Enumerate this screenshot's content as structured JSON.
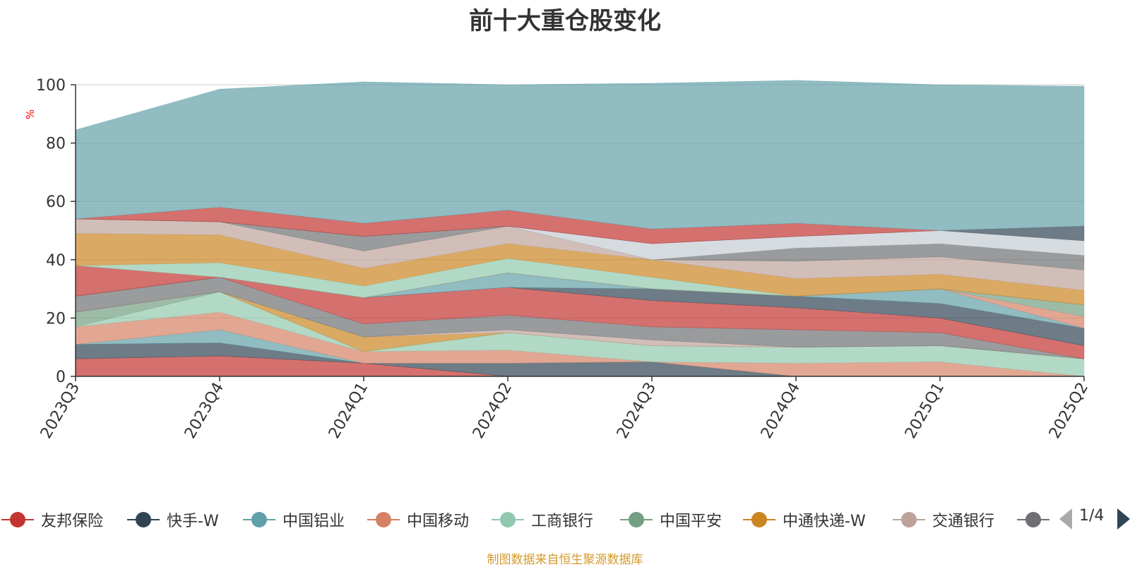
{
  "chart_data": {
    "type": "area",
    "stacked": true,
    "title": "前十大重仓股变化",
    "ylabel": "%",
    "ylim": [
      0,
      100
    ],
    "yticks": [
      0,
      20,
      40,
      60,
      80,
      100
    ],
    "grid": true,
    "legend_position": "bottom",
    "categories": [
      "2023Q3",
      "2023Q4",
      "2024Q1",
      "2024Q2",
      "2024Q3",
      "2024Q4",
      "2025Q1",
      "2025Q2"
    ],
    "series": [
      {
        "name": "友邦保险",
        "color": "#c23531",
        "values": [
          6,
          7,
          4.5,
          0,
          0,
          0,
          0,
          0
        ]
      },
      {
        "name": "快手-W",
        "color": "#2f4554",
        "values": [
          5,
          4.5,
          0,
          4.5,
          5,
          0,
          0,
          0
        ]
      },
      {
        "name": "中国铝业",
        "color": "#61a0a8",
        "values": [
          0,
          4.5,
          0,
          0,
          0,
          0,
          0,
          0
        ]
      },
      {
        "name": "中国移动",
        "color": "#d48265",
        "values": [
          6,
          6,
          4,
          4.5,
          0,
          4.5,
          5,
          0
        ]
      },
      {
        "name": "工商银行",
        "color": "#91c7ae",
        "values": [
          0,
          7,
          0,
          6,
          5.5,
          5.5,
          5.5,
          6
        ]
      },
      {
        "name": "中国平安",
        "color": "#749f83",
        "values": [
          5,
          0,
          0,
          0,
          0,
          0,
          0,
          0
        ]
      },
      {
        "name": "中通快递-W",
        "color": "#ca8622",
        "values": [
          0,
          0,
          5,
          0,
          0,
          0,
          0,
          0
        ]
      },
      {
        "name": "交通银行",
        "color": "#bda29a",
        "values": [
          0,
          0,
          0,
          1,
          2,
          0,
          0,
          0
        ]
      },
      {
        "name": "",
        "color": "#6e7074",
        "values": [
          5.5,
          5,
          4.5,
          5,
          4.5,
          6,
          4.5,
          0
        ]
      },
      {
        "name": "",
        "color": "#c23531",
        "values": [
          0,
          0,
          9,
          9.5,
          9,
          7.5,
          5,
          4.5
        ]
      },
      {
        "name": "",
        "color": "#2f4554",
        "values": [
          0,
          0,
          0,
          0,
          4,
          4,
          5,
          6
        ]
      },
      {
        "name": "",
        "color": "#61a0a8",
        "values": [
          0,
          0,
          0,
          5,
          0,
          0,
          5,
          0
        ]
      },
      {
        "name": "",
        "color": "#d48265",
        "values": [
          0,
          0,
          0,
          0,
          0,
          0,
          0,
          4
        ]
      },
      {
        "name": "",
        "color": "#749f83",
        "values": [
          0,
          0,
          0,
          0,
          0,
          0,
          0,
          4
        ]
      },
      {
        "name": "",
        "color": "#c23531",
        "values": [
          10.5,
          0,
          0,
          0,
          0,
          0,
          0,
          0
        ]
      },
      {
        "name": "",
        "color": "#91c7ae",
        "values": [
          0,
          5,
          4,
          5,
          4,
          0,
          0,
          0
        ]
      },
      {
        "name": "",
        "color": "#ca8622",
        "values": [
          11,
          9.5,
          6,
          5,
          6,
          6,
          5,
          5
        ]
      },
      {
        "name": "",
        "color": "#bda29a",
        "values": [
          5,
          4.5,
          6,
          6,
          0,
          6,
          6,
          7
        ]
      },
      {
        "name": "",
        "color": "#6e7074",
        "values": [
          0,
          0,
          5,
          0,
          0,
          4.5,
          4.5,
          5
        ]
      },
      {
        "name": "",
        "color": "#c4ccd3",
        "values": [
          0,
          0,
          0,
          0,
          5.5,
          4,
          4.5,
          5
        ]
      },
      {
        "name": "",
        "color": "#2f4554",
        "values": [
          0,
          0,
          0,
          0,
          0,
          0,
          0,
          5
        ]
      },
      {
        "name": "",
        "color": "#c23531",
        "values": [
          0,
          5,
          4.5,
          5.5,
          5,
          4.5,
          0,
          0
        ]
      },
      {
        "name": "",
        "color": "#61a0a8",
        "values": [
          30.5,
          40.5,
          48.5,
          43,
          50,
          49,
          50,
          48
        ]
      }
    ]
  },
  "legend": {
    "items": [
      {
        "label": "友邦保险",
        "color": "#c23531"
      },
      {
        "label": "快手-W",
        "color": "#2f4554"
      },
      {
        "label": "中国铝业",
        "color": "#61a0a8"
      },
      {
        "label": "中国移动",
        "color": "#d48265"
      },
      {
        "label": "工商银行",
        "color": "#91c7ae"
      },
      {
        "label": "中国平安",
        "color": "#749f83"
      },
      {
        "label": "中通快递-W",
        "color": "#ca8622"
      },
      {
        "label": "交通银行",
        "color": "#bda29a"
      },
      {
        "label": "",
        "color": "#6e7074"
      }
    ],
    "page_indicator": "1/4"
  },
  "footer": {
    "source_note": "制图数据来自恒生聚源数据库"
  }
}
